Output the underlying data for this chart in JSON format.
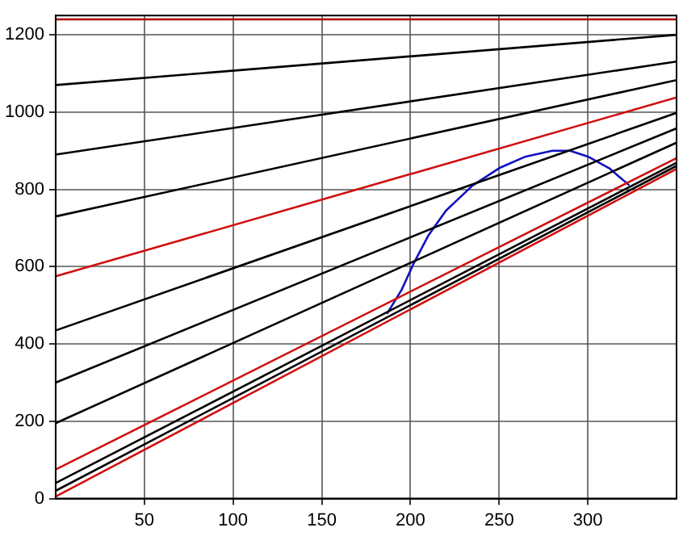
{
  "chart_data": {
    "type": "line",
    "xlim": [
      0,
      350
    ],
    "xticks": [
      50,
      100,
      150,
      200,
      250,
      300
    ],
    "ylim": [
      0,
      1250
    ],
    "yticks": [
      0,
      200,
      400,
      600,
      800,
      1000,
      1200
    ],
    "grid": true,
    "legend": false,
    "marker": "none",
    "line_style": "solid",
    "series": [
      {
        "color": "#b00000",
        "x": [
          0,
          350
        ],
        "values": [
          1240,
          1240
        ]
      },
      {
        "color": "#000000",
        "x": [
          0,
          350
        ],
        "values": [
          1070,
          1200
        ]
      },
      {
        "color": "#000000",
        "x": [
          0,
          350
        ],
        "values": [
          890,
          1131
        ]
      },
      {
        "color": "#000000",
        "x": [
          0,
          350
        ],
        "values": [
          730,
          1083
        ]
      },
      {
        "color": "#d01010",
        "x": [
          0,
          350
        ],
        "values": [
          575,
          1038
        ]
      },
      {
        "color": "#000000",
        "x": [
          0,
          350
        ],
        "values": [
          435,
          998
        ]
      },
      {
        "color": "#000000",
        "x": [
          0,
          350
        ],
        "values": [
          300,
          958
        ]
      },
      {
        "color": "#000000",
        "x": [
          0,
          350
        ],
        "values": [
          195,
          921
        ]
      },
      {
        "color": "#d01010",
        "x": [
          0,
          350
        ],
        "values": [
          75,
          881
        ]
      },
      {
        "color": "#000000",
        "x": [
          0,
          350
        ],
        "values": [
          40,
          869
        ]
      },
      {
        "color": "#000000",
        "x": [
          0,
          350
        ],
        "values": [
          20,
          861
        ]
      },
      {
        "color": "#d01010",
        "x": [
          0,
          350
        ],
        "values": [
          5,
          853
        ]
      },
      {
        "color": "#1010c0",
        "x": [
          187,
          195,
          202,
          210,
          220,
          235,
          250,
          265,
          280,
          290,
          300,
          312,
          323
        ],
        "values": [
          480,
          540,
          610,
          680,
          745,
          810,
          855,
          885,
          900,
          900,
          885,
          855,
          812
        ]
      }
    ]
  }
}
